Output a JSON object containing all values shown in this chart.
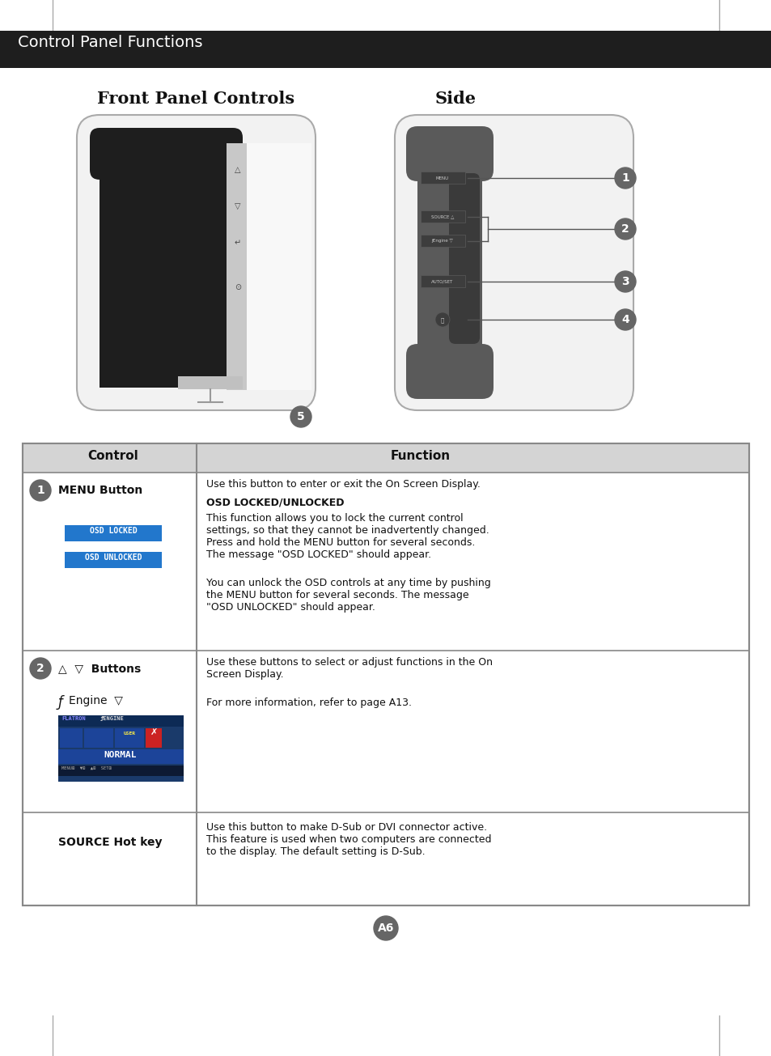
{
  "page_bg": "#ffffff",
  "header_bg": "#1e1e1e",
  "header_text": "Control Panel Functions",
  "header_text_color": "#ffffff",
  "title_front": "Front Panel Controls",
  "title_side": "Side",
  "table_header_bg": "#d4d4d4",
  "table_border_color": "#888888",
  "osd_locked_bg": "#2277cc",
  "osd_unlocked_bg": "#2277cc",
  "flatron_bg": "#1a3a6a",
  "flatron_bar_bg": "#2255aa",
  "circle_bg": "#666666",
  "circle_text": "#ffffff",
  "footer_text": "A6",
  "footer_bg": "#666666"
}
